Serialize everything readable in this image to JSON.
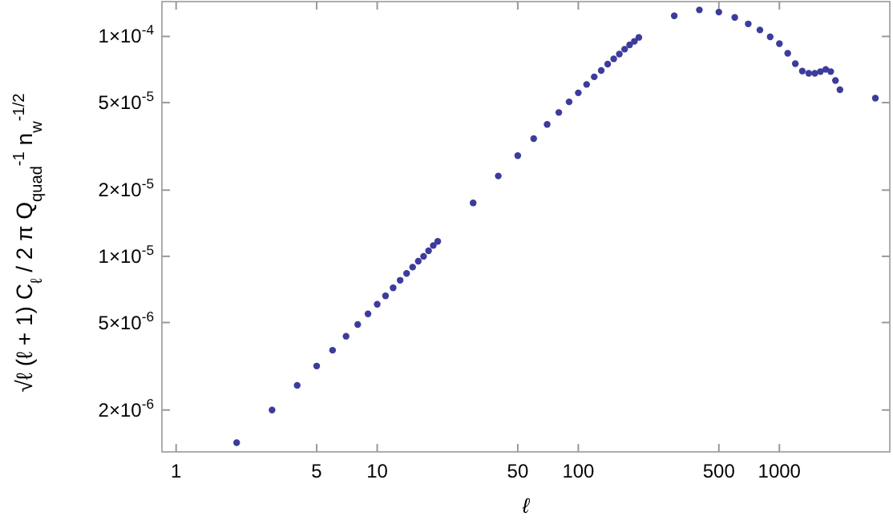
{
  "chart_data": {
    "type": "scatter",
    "xlabel": "ℓ",
    "ylabel": "√ℓ (ℓ + 1) C$_{ℓ}$ / 2 π   Q$_{quad}$$^{-1}$ n$_{w}$$^{-1/2}$",
    "log": "xy",
    "marker": "circle",
    "grid": false,
    "xlim": [
      0.85,
      3540
    ],
    "ylim": [
      1.29e-06,
      0.000144
    ],
    "xticks": [
      1,
      5,
      10,
      50,
      100,
      500,
      1000
    ],
    "yticks": [
      {
        "value": 2e-06,
        "label": "2×10$^{-6}$"
      },
      {
        "value": 5e-06,
        "label": "5×10$^{-6}$"
      },
      {
        "value": 1e-05,
        "label": "1×10$^{-5}$"
      },
      {
        "value": 2e-05,
        "label": "2×10$^{-5}$"
      },
      {
        "value": 5e-05,
        "label": "5×10$^{-5}$"
      },
      {
        "value": 0.0001,
        "label": "1×10$^{-4}$"
      }
    ],
    "series": [
      {
        "color": "#3c3c9c",
        "x": [
          2,
          3,
          4,
          5,
          6,
          7,
          8,
          9,
          10,
          11,
          12,
          13,
          14,
          15,
          16,
          17,
          18,
          19,
          20,
          30,
          40,
          50,
          60,
          70,
          80,
          90,
          100,
          110,
          120,
          130,
          140,
          150,
          160,
          170,
          180,
          190,
          200,
          300,
          400,
          500,
          600,
          700,
          800,
          900,
          1000,
          1100,
          1200,
          1300,
          1400,
          1500,
          1600,
          1700,
          1800,
          1900,
          2000,
          3000
        ],
        "values": [
          1.42e-06,
          2e-06,
          2.59e-06,
          3.17e-06,
          3.74e-06,
          4.33e-06,
          4.9e-06,
          5.47e-06,
          6.05e-06,
          6.61e-06,
          7.19e-06,
          7.78e-06,
          8.36e-06,
          8.93e-06,
          9.5e-06,
          1e-05,
          1.06e-05,
          1.12e-05,
          1.17e-05,
          1.75e-05,
          2.32e-05,
          2.87e-05,
          3.43e-05,
          3.98e-05,
          4.51e-05,
          5.04e-05,
          5.54e-05,
          6.05e-05,
          6.55e-05,
          7e-05,
          7.48e-05,
          7.91e-05,
          8.31e-05,
          8.75e-05,
          9.15e-05,
          9.5e-05,
          9.9e-05,
          0.000124,
          0.000132,
          0.000129,
          0.000122,
          0.000114,
          0.000107,
          9.95e-05,
          9.27e-05,
          8.38e-05,
          7.52e-05,
          6.96e-05,
          6.8e-05,
          6.8e-05,
          6.92e-05,
          7.08e-05,
          6.92e-05,
          6.3e-05,
          5.72e-05,
          5.24e-05
        ]
      }
    ]
  }
}
